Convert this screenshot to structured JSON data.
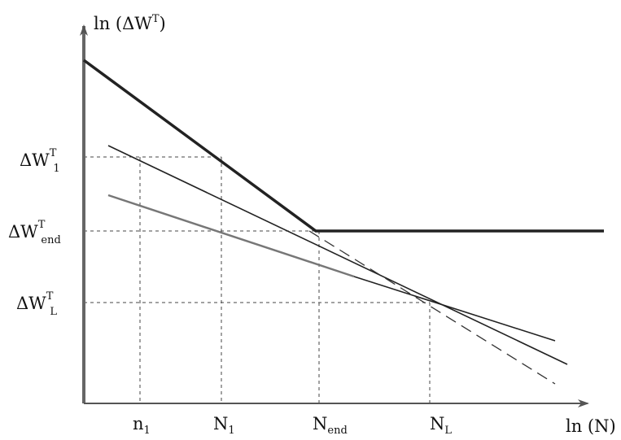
{
  "axes": {
    "y_label": {
      "main": "ln (ΔW",
      "sup": "T",
      "close": ")"
    },
    "x_label": "ln (N)"
  },
  "y_ticks": [
    {
      "base": "ΔW",
      "sup": "T",
      "sub": "1"
    },
    {
      "base": "ΔW",
      "sup": "T",
      "sub": "end"
    },
    {
      "base": "ΔW",
      "sup": "T",
      "sub": "L"
    }
  ],
  "x_ticks": [
    {
      "base": "n",
      "sub": "1"
    },
    {
      "base": "N",
      "sub": "1"
    },
    {
      "base": "N",
      "sub": "end"
    },
    {
      "base": "N",
      "sub": "L"
    }
  ],
  "colors": {
    "ink": "#111111",
    "guide": "#444444",
    "gray_line": "#777777"
  }
}
